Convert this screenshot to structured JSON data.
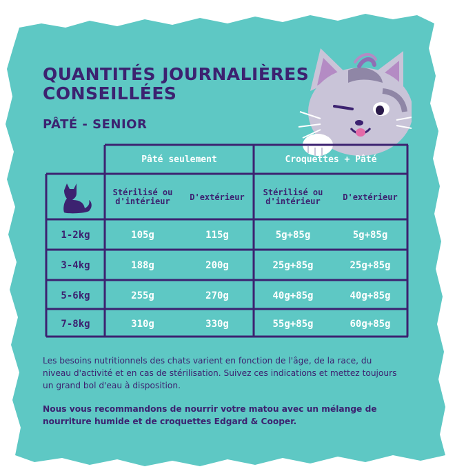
{
  "title_line1": "QUANTITÉS JOURNALIÈRES",
  "title_line2": "CONSEILLÉES",
  "subtitle": "PÂTÉ - SENIOR",
  "table": {
    "group_headers": [
      "Pâté seulement",
      "Croquettes + Pâté"
    ],
    "sub_headers": [
      {
        "line1": "Stérilisé ou",
        "line2": "d'intérieur"
      },
      {
        "line1": "D'extérieur",
        "line2": ""
      },
      {
        "line1": "Stérilisé ou",
        "line2": "d'intérieur"
      },
      {
        "line1": "D'extérieur",
        "line2": ""
      }
    ],
    "rows": [
      {
        "weight": "1-2kg",
        "values": [
          "105g",
          "115g",
          "5g+85g",
          "5g+85g"
        ]
      },
      {
        "weight": "3-4kg",
        "values": [
          "188g",
          "200g",
          "25g+85g",
          "25g+85g"
        ]
      },
      {
        "weight": "5-6kg",
        "values": [
          "255g",
          "270g",
          "40g+85g",
          "40g+85g"
        ]
      },
      {
        "weight": "7-8kg",
        "values": [
          "310g",
          "330g",
          "55g+85g",
          "60g+85g"
        ]
      }
    ]
  },
  "paragraph1": "Les besoins nutritionnels des chats varient en fonction de l'âge, de la race, du niveau d'activité et en cas de stérilisation. Suivez ces indications et mettez toujours un grand bol d'eau à disposition.",
  "paragraph2": "Nous vous recommandons de nourrir votre matou avec un mélange de nourriture humide et de croquettes Edgard & Cooper.",
  "icons": [
    "cat-silhouette-icon",
    "cat-mascot-illustration"
  ],
  "colors": {
    "background": "#5ec8c4",
    "border": "#3c2270",
    "text_dark": "#3c2270",
    "text_light": "#ffffff"
  }
}
